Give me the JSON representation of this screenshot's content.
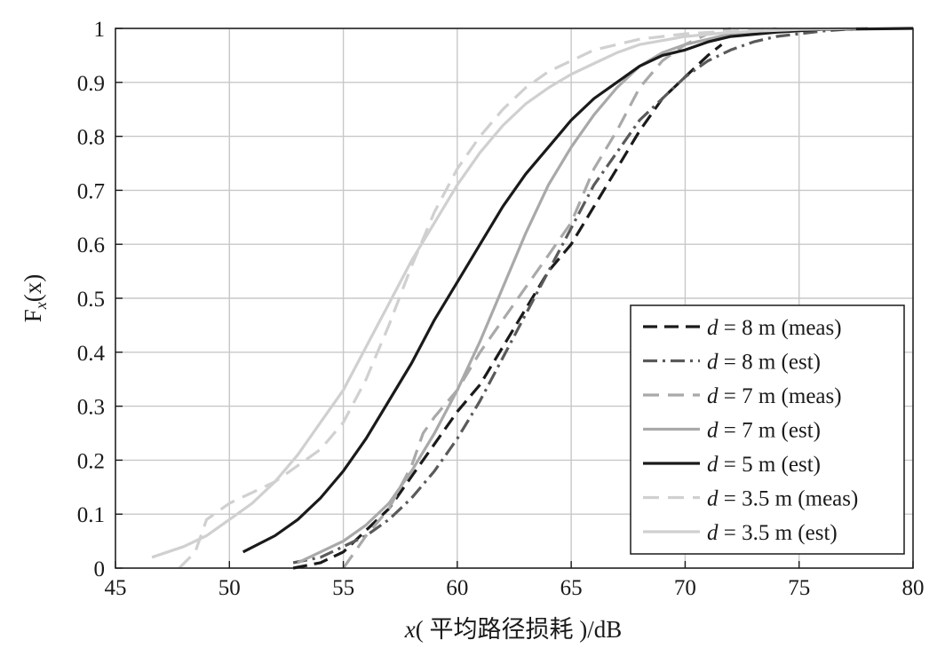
{
  "chart_data": {
    "type": "line",
    "title": "",
    "xlabel_prefix": "x",
    "xlabel_rest": "( 平均路径损耗 )/dB",
    "ylabel_main": "F",
    "ylabel_sub": "x",
    "ylabel_arg": "(x)",
    "xlim": [
      45,
      80
    ],
    "ylim": [
      0,
      1
    ],
    "xticks": [
      "45",
      "50",
      "55",
      "60",
      "65",
      "70",
      "75",
      "80"
    ],
    "yticks": [
      "0",
      "0.1",
      "0.2",
      "0.3",
      "0.4",
      "0.5",
      "0.6",
      "0.7",
      "0.8",
      "0.9",
      "1"
    ],
    "grid": true,
    "legend_position": "bottom-right",
    "series": [
      {
        "name": "d = 8 m (meas)",
        "d_label": "d",
        "rest_label": " = 8 m (meas)",
        "color": "#1a1a1a",
        "dash": "16,8",
        "width": 3.2,
        "points": [
          [
            52.8,
            0.0
          ],
          [
            54.0,
            0.01
          ],
          [
            55.0,
            0.03
          ],
          [
            56.0,
            0.07
          ],
          [
            57.0,
            0.11
          ],
          [
            58.0,
            0.17
          ],
          [
            59.0,
            0.23
          ],
          [
            60.0,
            0.29
          ],
          [
            61.0,
            0.34
          ],
          [
            62.0,
            0.41
          ],
          [
            63.0,
            0.48
          ],
          [
            64.0,
            0.55
          ],
          [
            65.0,
            0.6
          ],
          [
            66.0,
            0.67
          ],
          [
            67.0,
            0.74
          ],
          [
            68.0,
            0.81
          ],
          [
            69.0,
            0.87
          ],
          [
            70.0,
            0.91
          ],
          [
            71.0,
            0.95
          ],
          [
            71.6,
            0.97
          ]
        ]
      },
      {
        "name": "d = 8 m (est)",
        "d_label": "d",
        "rest_label": " = 8 m (est)",
        "color": "#5a5a5a",
        "dash": "16,6,3,6",
        "width": 3.2,
        "points": [
          [
            52.8,
            0.01
          ],
          [
            54,
            0.02
          ],
          [
            55,
            0.04
          ],
          [
            56,
            0.06
          ],
          [
            57,
            0.09
          ],
          [
            58,
            0.13
          ],
          [
            59,
            0.18
          ],
          [
            60,
            0.24
          ],
          [
            61,
            0.31
          ],
          [
            62,
            0.39
          ],
          [
            63,
            0.47
          ],
          [
            64,
            0.55
          ],
          [
            65,
            0.63
          ],
          [
            66,
            0.71
          ],
          [
            67,
            0.77
          ],
          [
            68,
            0.83
          ],
          [
            69,
            0.87
          ],
          [
            70,
            0.91
          ],
          [
            71,
            0.94
          ],
          [
            72,
            0.96
          ],
          [
            73,
            0.975
          ],
          [
            74,
            0.985
          ],
          [
            75,
            0.99
          ],
          [
            76,
            0.995
          ],
          [
            77,
            0.998
          ],
          [
            78,
            1.0
          ]
        ]
      },
      {
        "name": "d = 7 m (meas)",
        "d_label": "d",
        "rest_label": " = 7 m (meas)",
        "color": "#a9a9a9",
        "dash": "18,10",
        "width": 3.2,
        "points": [
          [
            55.0,
            0.0
          ],
          [
            55.5,
            0.03
          ],
          [
            56.0,
            0.06
          ],
          [
            57.0,
            0.11
          ],
          [
            58.0,
            0.19
          ],
          [
            58.5,
            0.25
          ],
          [
            59.0,
            0.28
          ],
          [
            60.0,
            0.33
          ],
          [
            61.0,
            0.4
          ],
          [
            62.0,
            0.46
          ],
          [
            63.0,
            0.52
          ],
          [
            64.0,
            0.58
          ],
          [
            65.0,
            0.64
          ],
          [
            66.0,
            0.74
          ],
          [
            67.0,
            0.81
          ],
          [
            68.0,
            0.89
          ],
          [
            69.0,
            0.94
          ],
          [
            70.0,
            0.97
          ],
          [
            71.0,
            0.99
          ],
          [
            72.0,
            1.0
          ]
        ]
      },
      {
        "name": "d = 7 m (est)",
        "d_label": "d",
        "rest_label": " = 7 m (est)",
        "color": "#a9a9a9",
        "dash": "",
        "width": 3.2,
        "points": [
          [
            53,
            0.01
          ],
          [
            54,
            0.03
          ],
          [
            55,
            0.05
          ],
          [
            56,
            0.08
          ],
          [
            57,
            0.12
          ],
          [
            58,
            0.18
          ],
          [
            59,
            0.25
          ],
          [
            60,
            0.33
          ],
          [
            61,
            0.42
          ],
          [
            62,
            0.52
          ],
          [
            63,
            0.62
          ],
          [
            64,
            0.71
          ],
          [
            65,
            0.78
          ],
          [
            66,
            0.84
          ],
          [
            67,
            0.89
          ],
          [
            68,
            0.93
          ],
          [
            69,
            0.955
          ],
          [
            70,
            0.97
          ],
          [
            71,
            0.98
          ],
          [
            72,
            0.99
          ],
          [
            74,
            0.996
          ],
          [
            76,
            0.999
          ],
          [
            78,
            1.0
          ]
        ]
      },
      {
        "name": "d = 5 m (est)",
        "d_label": "d",
        "rest_label": " = 5 m (est)",
        "color": "#1a1a1a",
        "dash": "",
        "width": 3.2,
        "points": [
          [
            50.6,
            0.03
          ],
          [
            52,
            0.06
          ],
          [
            53,
            0.09
          ],
          [
            54,
            0.13
          ],
          [
            55,
            0.18
          ],
          [
            56,
            0.24
          ],
          [
            57,
            0.31
          ],
          [
            58,
            0.38
          ],
          [
            59,
            0.46
          ],
          [
            60,
            0.53
          ],
          [
            61,
            0.6
          ],
          [
            62,
            0.67
          ],
          [
            63,
            0.73
          ],
          [
            64,
            0.78
          ],
          [
            65,
            0.83
          ],
          [
            66,
            0.87
          ],
          [
            67,
            0.9
          ],
          [
            68,
            0.93
          ],
          [
            69,
            0.95
          ],
          [
            70,
            0.96
          ],
          [
            71,
            0.975
          ],
          [
            72,
            0.985
          ],
          [
            74,
            0.993
          ],
          [
            76,
            0.998
          ],
          [
            80,
            1.0
          ]
        ]
      },
      {
        "name": "d = 3.5 m (meas)",
        "d_label": "d",
        "rest_label": " = 3.5 m (meas)",
        "color": "#d0d0d0",
        "dash": "18,10",
        "width": 3.2,
        "points": [
          [
            47.8,
            0.0
          ],
          [
            48.5,
            0.03
          ],
          [
            49.0,
            0.09
          ],
          [
            50.0,
            0.12
          ],
          [
            51.0,
            0.14
          ],
          [
            52.0,
            0.16
          ],
          [
            53.0,
            0.19
          ],
          [
            54.0,
            0.22
          ],
          [
            55.0,
            0.27
          ],
          [
            56.0,
            0.35
          ],
          [
            57.0,
            0.45
          ],
          [
            58.0,
            0.56
          ],
          [
            59.0,
            0.66
          ],
          [
            60.0,
            0.74
          ],
          [
            61.0,
            0.8
          ],
          [
            62.0,
            0.85
          ],
          [
            63.0,
            0.89
          ],
          [
            64.0,
            0.92
          ],
          [
            65.0,
            0.94
          ],
          [
            66.0,
            0.96
          ],
          [
            67.0,
            0.97
          ],
          [
            68.0,
            0.98
          ],
          [
            69.0,
            0.985
          ],
          [
            70.0,
            0.99
          ],
          [
            72.0,
            0.995
          ],
          [
            74.0,
            1.0
          ]
        ]
      },
      {
        "name": "d = 3.5 m (est)",
        "d_label": "d",
        "rest_label": " = 3.5 m (est)",
        "color": "#d0d0d0",
        "dash": "",
        "width": 3.2,
        "points": [
          [
            46.6,
            0.02
          ],
          [
            48,
            0.04
          ],
          [
            49,
            0.06
          ],
          [
            50,
            0.09
          ],
          [
            51,
            0.12
          ],
          [
            52,
            0.16
          ],
          [
            53,
            0.21
          ],
          [
            54,
            0.27
          ],
          [
            55,
            0.33
          ],
          [
            56,
            0.41
          ],
          [
            57,
            0.49
          ],
          [
            58,
            0.57
          ],
          [
            59,
            0.64
          ],
          [
            60,
            0.71
          ],
          [
            61,
            0.77
          ],
          [
            62,
            0.82
          ],
          [
            63,
            0.86
          ],
          [
            64,
            0.89
          ],
          [
            65,
            0.915
          ],
          [
            66,
            0.935
          ],
          [
            67,
            0.955
          ],
          [
            68,
            0.97
          ],
          [
            70,
            0.985
          ],
          [
            72,
            0.993
          ],
          [
            75,
            0.998
          ],
          [
            77.5,
            1.0
          ]
        ]
      }
    ]
  }
}
